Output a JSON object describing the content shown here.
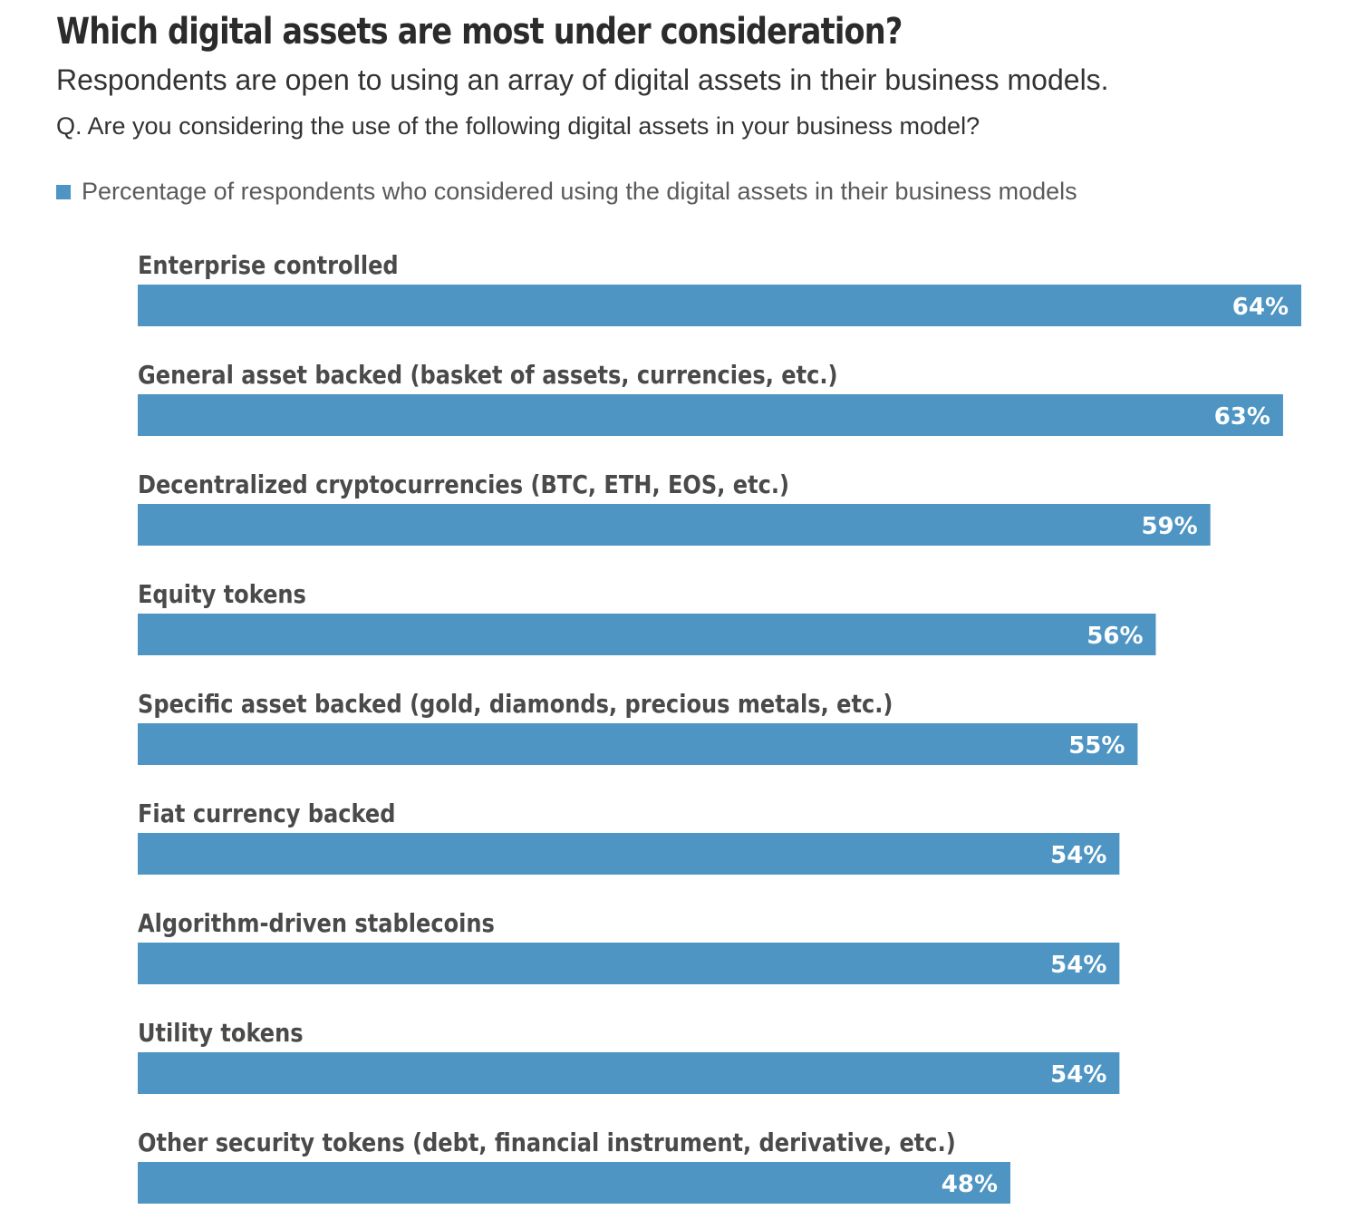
{
  "header": {
    "title": "Which digital assets are most under consideration?",
    "subtitle": "Respondents are open to using an array of digital assets in their business models.",
    "question": "Q.  Are you considering the use of the following digital assets in your business model?"
  },
  "colors": {
    "bar": "#4e95c4",
    "title": "#2b2b2b",
    "category_label": "#4a4a4a",
    "value_label": "#ffffff"
  },
  "chart_data": {
    "type": "bar",
    "orientation": "horizontal",
    "grid": false,
    "legend_placement": "top-left",
    "series": [
      {
        "name": "Percentage of respondents who considered using the digital assets in their business models",
        "values": [
          64,
          63,
          59,
          56,
          55,
          54,
          54,
          54,
          48
        ]
      }
    ],
    "categories": [
      "Enterprise controlled",
      "General asset backed (basket of assets, currencies, etc.)",
      "Decentralized cryptocurrencies (BTC, ETH, EOS, etc.)",
      "Equity tokens",
      "Specific asset backed (gold, diamonds, precious metals, etc.)",
      "Fiat currency backed",
      "Algorithm-driven stablecoins",
      "Utility tokens",
      "Other security tokens (debt, financial instrument, derivative, etc.)"
    ],
    "value_labels": [
      "64%",
      "63%",
      "59%",
      "56%",
      "55%",
      "54%",
      "54%",
      "54%",
      "48%"
    ],
    "unit": "%",
    "xlim": [
      0,
      64
    ]
  }
}
